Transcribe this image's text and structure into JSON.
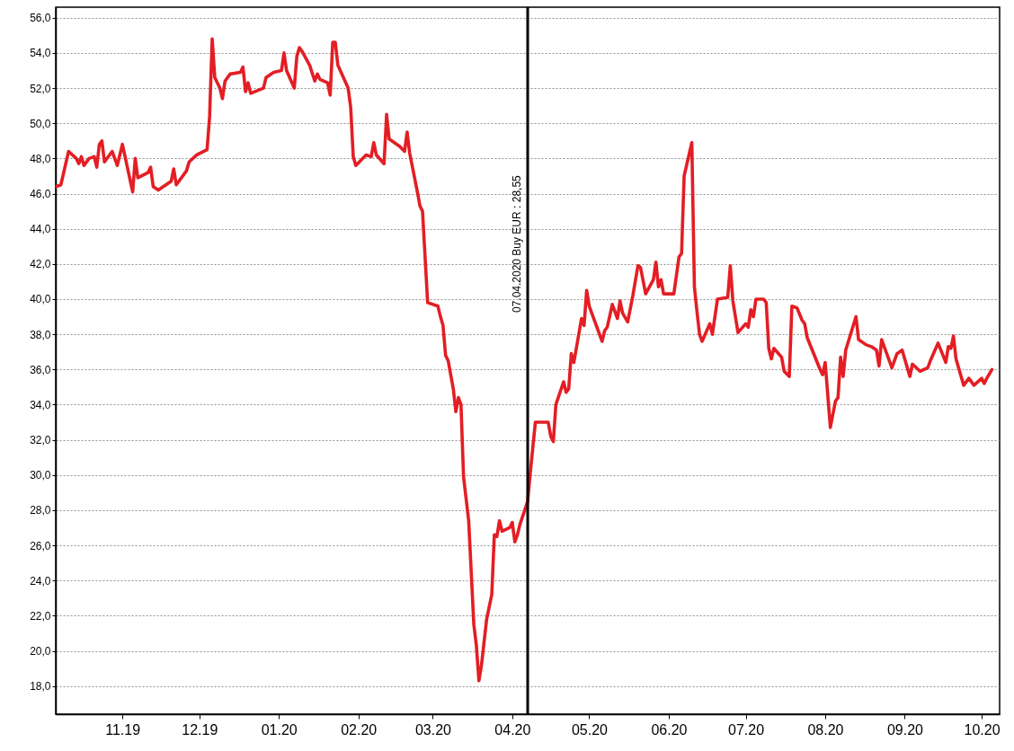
{
  "chart_data": {
    "type": "line",
    "x": [
      "2019-10-06",
      "2019-10-08",
      "2019-10-11",
      "2019-10-14",
      "2019-10-15",
      "2019-10-16",
      "2019-10-17",
      "2019-10-19",
      "2019-10-21",
      "2019-10-22",
      "2019-10-23",
      "2019-10-24",
      "2019-10-25",
      "2019-10-28",
      "2019-10-30",
      "2019-11-01",
      "2019-11-05",
      "2019-11-06",
      "2019-11-07",
      "2019-11-11",
      "2019-11-12",
      "2019-11-13",
      "2019-11-15",
      "2019-11-19",
      "2019-11-20",
      "2019-11-21",
      "2019-11-22",
      "2019-11-26",
      "2019-11-27",
      "2019-11-30",
      "2019-12-04",
      "2019-12-05",
      "2019-12-06",
      "2019-12-07",
      "2019-12-09",
      "2019-12-10",
      "2019-12-11",
      "2019-12-13",
      "2019-12-17",
      "2019-12-18",
      "2019-12-19",
      "2019-12-20",
      "2019-12-21",
      "2019-12-26",
      "2019-12-27",
      "2019-12-30",
      "2020-01-02",
      "2020-01-03",
      "2020-01-04",
      "2020-01-07",
      "2020-01-08",
      "2020-01-09",
      "2020-01-10",
      "2020-01-13",
      "2020-01-15",
      "2020-01-16",
      "2020-01-17",
      "2020-01-20",
      "2020-01-21",
      "2020-01-22",
      "2020-01-23",
      "2020-01-24",
      "2020-01-28",
      "2020-01-29",
      "2020-01-30",
      "2020-01-31",
      "2020-02-04",
      "2020-02-06",
      "2020-02-07",
      "2020-02-08",
      "2020-02-11",
      "2020-02-12",
      "2020-02-13",
      "2020-02-17",
      "2020-02-19",
      "2020-02-20",
      "2020-02-21",
      "2020-02-24",
      "2020-02-25",
      "2020-02-26",
      "2020-02-27",
      "2020-02-28",
      "2020-03-03",
      "2020-03-04",
      "2020-03-05",
      "2020-03-06",
      "2020-03-07",
      "2020-03-09",
      "2020-03-10",
      "2020-03-11",
      "2020-03-12",
      "2020-03-13",
      "2020-03-15",
      "2020-03-17",
      "2020-03-18",
      "2020-03-19",
      "2020-03-20",
      "2020-03-22",
      "2020-03-24",
      "2020-03-25",
      "2020-03-26",
      "2020-03-27",
      "2020-03-28",
      "2020-03-31",
      "2020-04-01",
      "2020-04-02",
      "2020-04-03",
      "2020-04-04",
      "2020-04-07",
      "2020-04-08",
      "2020-04-10",
      "2020-04-15",
      "2020-04-16",
      "2020-04-17",
      "2020-04-18",
      "2020-04-21",
      "2020-04-22",
      "2020-04-23",
      "2020-04-24",
      "2020-04-25",
      "2020-04-28",
      "2020-04-29",
      "2020-04-30",
      "2020-05-01",
      "2020-05-06",
      "2020-05-07",
      "2020-05-08",
      "2020-05-10",
      "2020-05-12",
      "2020-05-13",
      "2020-05-14",
      "2020-05-16",
      "2020-05-18",
      "2020-05-20",
      "2020-05-21",
      "2020-05-23",
      "2020-05-26",
      "2020-05-27",
      "2020-05-28",
      "2020-05-29",
      "2020-05-30",
      "2020-06-03",
      "2020-06-05",
      "2020-06-06",
      "2020-06-07",
      "2020-06-10",
      "2020-06-11",
      "2020-06-12",
      "2020-06-13",
      "2020-06-14",
      "2020-06-17",
      "2020-06-18",
      "2020-06-20",
      "2020-06-24",
      "2020-06-25",
      "2020-06-26",
      "2020-06-28",
      "2020-07-01",
      "2020-07-02",
      "2020-07-03",
      "2020-07-04",
      "2020-07-05",
      "2020-07-08",
      "2020-07-09",
      "2020-07-10",
      "2020-07-11",
      "2020-07-12",
      "2020-07-15",
      "2020-07-16",
      "2020-07-18",
      "2020-07-19",
      "2020-07-21",
      "2020-07-23",
      "2020-07-24",
      "2020-07-25",
      "2020-07-30",
      "2020-07-31",
      "2020-08-01",
      "2020-08-03",
      "2020-08-05",
      "2020-08-06",
      "2020-08-07",
      "2020-08-08",
      "2020-08-09",
      "2020-08-13",
      "2020-08-14",
      "2020-08-17",
      "2020-08-19",
      "2020-08-21",
      "2020-08-22",
      "2020-08-23",
      "2020-08-27",
      "2020-08-29",
      "2020-08-31",
      "2020-09-03",
      "2020-09-04",
      "2020-09-07",
      "2020-09-10",
      "2020-09-11",
      "2020-09-14",
      "2020-09-17",
      "2020-09-18",
      "2020-09-19",
      "2020-09-20",
      "2020-09-21",
      "2020-09-24",
      "2020-09-26",
      "2020-09-28",
      "2020-10-01",
      "2020-10-02",
      "2020-10-03",
      "2020-10-05"
    ],
    "series": [
      {
        "color": "#e31e24",
        "values": [
          46.4,
          46.5,
          48.4,
          48.0,
          47.7,
          48.1,
          47.6,
          48.0,
          48.1,
          47.5,
          48.8,
          49.0,
          47.8,
          48.4,
          47.6,
          48.8,
          46.1,
          48.0,
          46.9,
          47.2,
          47.5,
          46.4,
          46.2,
          46.6,
          46.7,
          47.4,
          46.5,
          47.3,
          47.8,
          48.2,
          48.5,
          50.4,
          54.8,
          52.6,
          52.0,
          51.4,
          52.4,
          52.8,
          52.9,
          53.2,
          51.8,
          52.3,
          51.7,
          52.0,
          52.6,
          52.9,
          53.0,
          54.0,
          53.0,
          52.0,
          53.8,
          54.3,
          54.1,
          53.3,
          52.4,
          52.8,
          52.5,
          52.3,
          51.6,
          54.6,
          54.6,
          53.3,
          52.0,
          50.9,
          48.1,
          47.6,
          48.2,
          48.1,
          48.9,
          48.2,
          47.7,
          50.5,
          49.1,
          48.7,
          48.4,
          49.5,
          48.3,
          46.1,
          45.3,
          45.0,
          42.4,
          39.8,
          39.6,
          39.0,
          38.5,
          36.8,
          36.5,
          34.9,
          33.6,
          34.4,
          34.0,
          29.9,
          27.4,
          21.5,
          20.3,
          18.3,
          19.2,
          21.8,
          23.2,
          26.6,
          26.5,
          27.4,
          26.8,
          27.0,
          27.3,
          26.2,
          26.6,
          27.2,
          28.5,
          30.1,
          33.0,
          33.0,
          32.2,
          31.9,
          34.0,
          35.3,
          34.7,
          34.9,
          36.9,
          36.4,
          38.9,
          38.5,
          40.5,
          39.6,
          37.6,
          38.2,
          38.4,
          39.7,
          38.9,
          39.9,
          39.2,
          38.7,
          40.2,
          41.9,
          41.8,
          40.3,
          41.1,
          42.1,
          40.7,
          41.1,
          40.3,
          40.3,
          42.4,
          42.6,
          47.0,
          48.9,
          40.7,
          39.3,
          38.0,
          37.6,
          38.6,
          38.0,
          40.0,
          40.1,
          41.9,
          39.9,
          38.1,
          38.6,
          38.4,
          39.4,
          39.0,
          40.0,
          40.0,
          39.8,
          37.2,
          36.6,
          37.2,
          36.7,
          35.9,
          35.6,
          39.6,
          39.5,
          38.8,
          38.6,
          37.8,
          36.0,
          35.7,
          36.4,
          32.7,
          34.2,
          34.4,
          36.7,
          35.6,
          37.1,
          39.0,
          37.7,
          37.4,
          37.3,
          37.1,
          36.2,
          37.7,
          36.1,
          36.9,
          37.1,
          35.6,
          36.3,
          35.9,
          36.1,
          36.5,
          37.5,
          36.4,
          37.3,
          37.2,
          37.9,
          36.6,
          35.1,
          35.5,
          35.1,
          35.5,
          35.2,
          35.5,
          36.0
        ]
      }
    ],
    "xlim": [
      "2019-10-06",
      "2020-10-08"
    ],
    "xticks": [
      {
        "value": "2019-11-01",
        "label": "11.19"
      },
      {
        "value": "2019-12-01",
        "label": "12.19"
      },
      {
        "value": "2020-01-01",
        "label": "01.20"
      },
      {
        "value": "2020-02-01",
        "label": "02.20"
      },
      {
        "value": "2020-03-01",
        "label": "03.20"
      },
      {
        "value": "2020-04-01",
        "label": "04.20"
      },
      {
        "value": "2020-05-01",
        "label": "05.20"
      },
      {
        "value": "2020-06-01",
        "label": "06.20"
      },
      {
        "value": "2020-07-01",
        "label": "07.20"
      },
      {
        "value": "2020-08-01",
        "label": "08.20"
      },
      {
        "value": "2020-09-01",
        "label": "09.20"
      },
      {
        "value": "2020-10-01",
        "label": "10.20"
      }
    ],
    "ylim": [
      16.4,
      56.6
    ],
    "yticks": [
      {
        "value": 18,
        "label": "18,0"
      },
      {
        "value": 20,
        "label": "20,0"
      },
      {
        "value": 22,
        "label": "22,0"
      },
      {
        "value": 24,
        "label": "24,0"
      },
      {
        "value": 26,
        "label": "26,0"
      },
      {
        "value": 28,
        "label": "28,0"
      },
      {
        "value": 30,
        "label": "30,0"
      },
      {
        "value": 32,
        "label": "32,0"
      },
      {
        "value": 34,
        "label": "34,0"
      },
      {
        "value": 36,
        "label": "36,0"
      },
      {
        "value": 38,
        "label": "38,0"
      },
      {
        "value": 40,
        "label": "40,0"
      },
      {
        "value": 42,
        "label": "42,0"
      },
      {
        "value": 44,
        "label": "44,0"
      },
      {
        "value": 46,
        "label": "46,0"
      },
      {
        "value": 48,
        "label": "48,0"
      },
      {
        "value": 50,
        "label": "50,0"
      },
      {
        "value": 52,
        "label": "52,0"
      },
      {
        "value": 54,
        "label": "54,0"
      },
      {
        "value": 56,
        "label": "56,0"
      }
    ],
    "grid": "y",
    "line_style": "solid",
    "ref_lines": [
      {
        "axis": "x",
        "value": "2020-04-07",
        "label": "07.04.2020 Buy EUR : 28,55",
        "color": "#000000"
      }
    ]
  }
}
